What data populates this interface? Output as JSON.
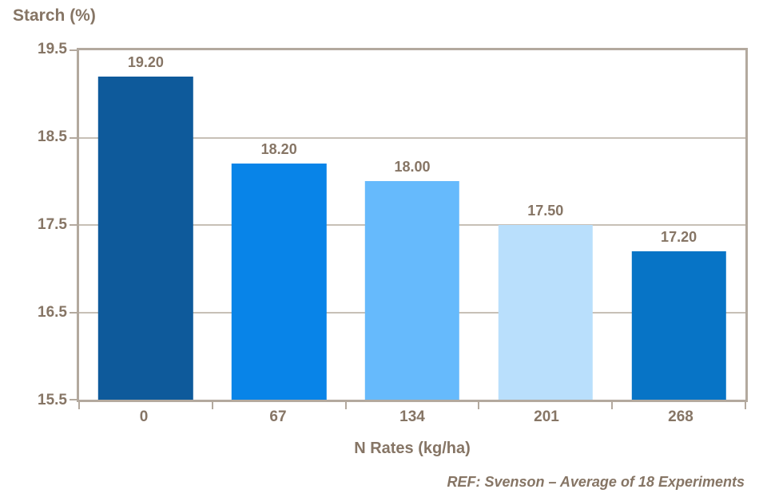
{
  "chart_data": {
    "type": "bar",
    "title": "Starch (%)",
    "xlabel": "N Rates (kg/ha)",
    "footer": "REF: Svenson – Average of 18 Experiments",
    "categories": [
      "0",
      "67",
      "134",
      "201",
      "268"
    ],
    "values": [
      19.2,
      18.2,
      18.0,
      17.5,
      17.2
    ],
    "value_labels": [
      "19.20",
      "18.20",
      "18.00",
      "17.50",
      "17.20"
    ],
    "bar_colors": [
      "#0e5a9b",
      "#0884e8",
      "#66bafc",
      "#b9dffc",
      "#0774c6"
    ],
    "ylim": [
      15.5,
      19.5
    ],
    "yticks": [
      19.5,
      18.5,
      17.5,
      16.5,
      15.5
    ],
    "ytick_labels": [
      "19.5",
      "18.5",
      "17.5",
      "16.5",
      "15.5"
    ],
    "grid": true,
    "legend": "none",
    "colors": {
      "text": "#867565",
      "axis": "#b3a99e",
      "grid": "#c7c0b6",
      "background": "#ffffff"
    }
  }
}
